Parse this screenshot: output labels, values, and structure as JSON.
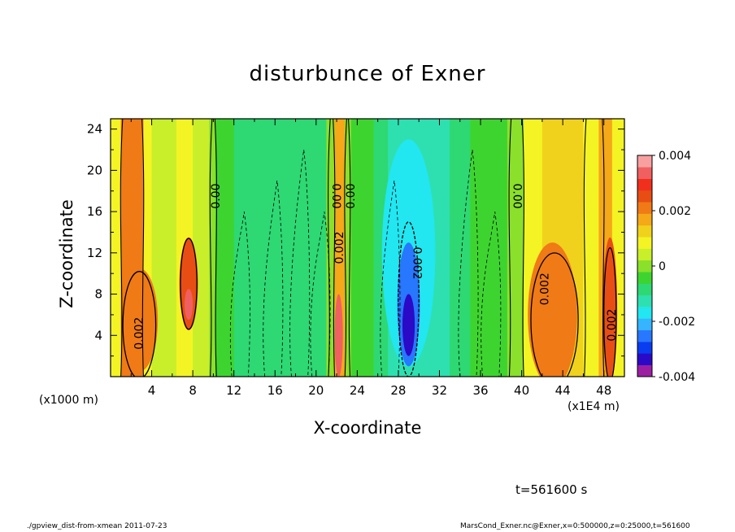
{
  "chart_data": {
    "type": "heatmap",
    "title": "disturbunce of Exner",
    "xlabel": "X-coordinate",
    "ylabel": "Z-coordinate",
    "x_unit_left": "(x1000 m)",
    "x_unit_right": "(x1E4 m)",
    "xlim": [
      0,
      50
    ],
    "ylim": [
      0,
      25
    ],
    "x_ticks": [
      "4",
      "8",
      "12",
      "16",
      "20",
      "24",
      "28",
      "32",
      "36",
      "40",
      "44",
      "48"
    ],
    "y_ticks": [
      "4",
      "8",
      "12",
      "16",
      "20",
      "24"
    ],
    "colorbar": {
      "ticks": [
        "0.004",
        "0.002",
        "0",
        "-0.002",
        "-0.004"
      ],
      "range": [
        -0.004,
        0.004
      ],
      "levels": [
        "#9c1fa3",
        "#2a0ac6",
        "#0a3cf0",
        "#2877ff",
        "#36b4ff",
        "#22e6f0",
        "#2ee0b0",
        "#2ed872",
        "#3ed430",
        "#8ae02a",
        "#c8ef2a",
        "#f4f424",
        "#f0d21c",
        "#f5a818",
        "#f07a16",
        "#e84e14",
        "#f0301c",
        "#f06060",
        "#f8a0a0"
      ]
    },
    "contour_labels": [
      "0.00",
      "0.00",
      "0.00",
      "0.00",
      "0.002",
      "0.002",
      "0.002",
      "0.002",
      "0.002"
    ],
    "bands": [
      {
        "x0": 0,
        "x1": 1,
        "value": 0.001
      },
      {
        "x0": 1,
        "x1": 3.2,
        "value": 0.002
      },
      {
        "x0": 3.2,
        "x1": 4,
        "value": 0.001
      },
      {
        "x0": 4,
        "x1": 6.4,
        "value": 0.0005
      },
      {
        "x0": 6.4,
        "x1": 8,
        "value": 0.001
      },
      {
        "x0": 8,
        "x1": 9.6,
        "value": 0.0005
      },
      {
        "x0": 9.6,
        "x1": 10.2,
        "value": 0.0
      },
      {
        "x0": 10.2,
        "x1": 12,
        "value": -0.0003
      },
      {
        "x0": 12,
        "x1": 16,
        "value": -0.0008
      },
      {
        "x0": 16,
        "x1": 21,
        "value": -0.0008
      },
      {
        "x0": 21,
        "x1": 21.8,
        "value": 0.0
      },
      {
        "x0": 21.8,
        "x1": 22.8,
        "value": 0.0015
      },
      {
        "x0": 22.8,
        "x1": 23.4,
        "value": 0.0
      },
      {
        "x0": 23.4,
        "x1": 25.6,
        "value": -0.0004
      },
      {
        "x0": 25.6,
        "x1": 27,
        "value": -0.001
      },
      {
        "x0": 27,
        "x1": 33,
        "value": -0.0014
      },
      {
        "x0": 33,
        "x1": 35,
        "value": -0.001
      },
      {
        "x0": 35,
        "x1": 38.6,
        "value": -0.0004
      },
      {
        "x0": 38.6,
        "x1": 40.2,
        "value": 0.0
      },
      {
        "x0": 40.2,
        "x1": 42,
        "value": 0.0008
      },
      {
        "x0": 42,
        "x1": 46,
        "value": 0.0014
      },
      {
        "x0": 46,
        "x1": 47.5,
        "value": 0.001
      },
      {
        "x0": 47.5,
        "x1": 48.8,
        "value": 0.0016
      },
      {
        "x0": 48.8,
        "x1": 50,
        "value": 0.001
      }
    ],
    "blobs": [
      {
        "x": 2.8,
        "y": 5.5,
        "rx": 1.8,
        "ry": 5.0,
        "value": 0.0022
      },
      {
        "x": 7.6,
        "y": 9.0,
        "rx": 0.9,
        "ry": 4.5,
        "value": 0.0024
      },
      {
        "x": 7.6,
        "y": 7.0,
        "rx": 0.4,
        "ry": 1.5,
        "value": 0.0032
      },
      {
        "x": 22.2,
        "y": 4.0,
        "rx": 0.4,
        "ry": 4.0,
        "value": 0.0034
      },
      {
        "x": 29.0,
        "y": 12.0,
        "rx": 2.6,
        "ry": 11.0,
        "value": -0.0018
      },
      {
        "x": 29.0,
        "y": 7.0,
        "rx": 1.1,
        "ry": 6.0,
        "value": -0.0026
      },
      {
        "x": 29.0,
        "y": 5.0,
        "rx": 0.6,
        "ry": 3.0,
        "value": -0.0032
      },
      {
        "x": 43.0,
        "y": 6.0,
        "rx": 2.4,
        "ry": 7.0,
        "value": 0.002
      },
      {
        "x": 43.3,
        "y": 5.0,
        "rx": 1.8,
        "ry": 5.0,
        "value": 0.0023
      },
      {
        "x": 48.6,
        "y": 6.5,
        "rx": 0.7,
        "ry": 7.0,
        "value": 0.0024
      }
    ]
  },
  "annotations": {
    "time": "t=561600 s",
    "footer_left": "./gpview_dist-from-xmean   2011-07-23",
    "footer_right": "MarsCond_Exner.nc@Exner,x=0:500000,z=0:25000,t=561600"
  }
}
